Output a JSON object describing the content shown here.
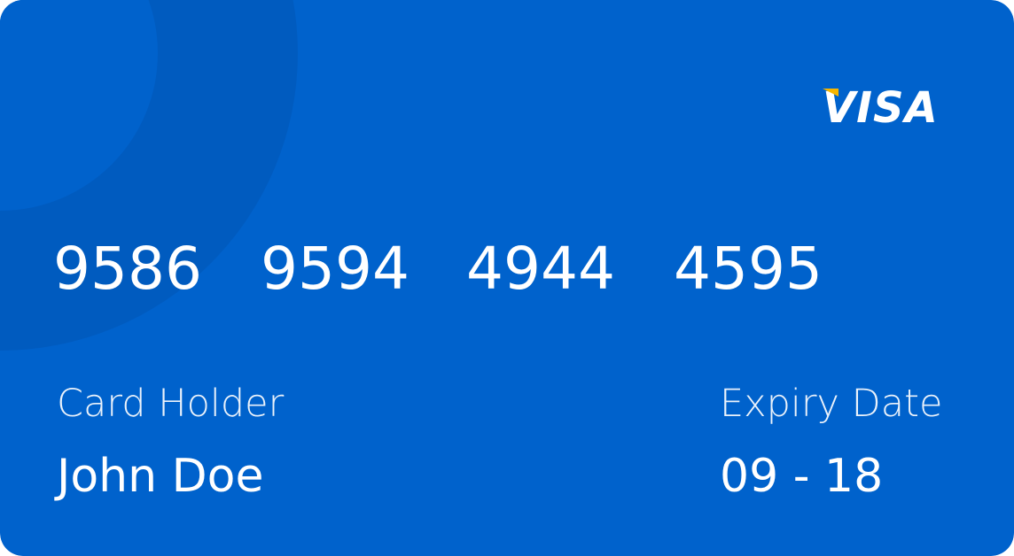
{
  "card": {
    "background_color": "#0062cc",
    "deco_color": "#005bbf",
    "brand": {
      "name": "VISA",
      "icon": "visa-logo-icon",
      "accent_color": "#f7b600"
    },
    "number_groups": [
      "9586",
      "9594",
      "4944",
      "4595"
    ],
    "holder": {
      "label": "Card Holder",
      "value": "John Doe"
    },
    "expiry": {
      "label": "Expiry Date",
      "value": "09 - 18"
    }
  }
}
